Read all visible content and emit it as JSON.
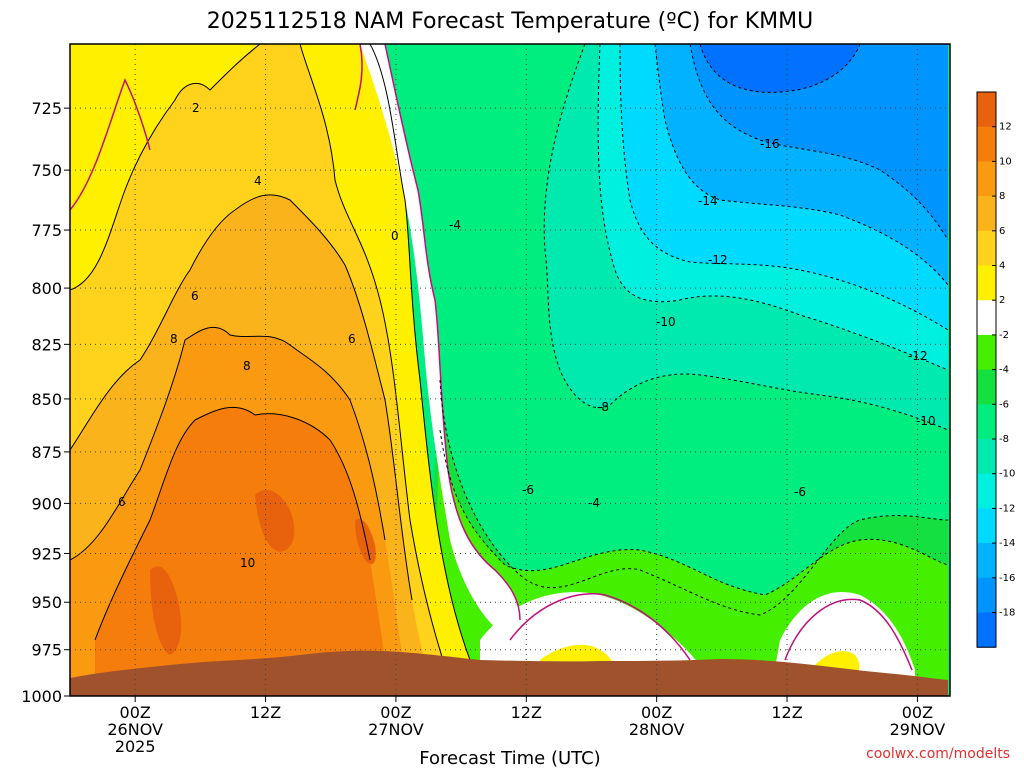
{
  "chart_data": {
    "type": "heatmap",
    "title": "2025112518 NAM Forecast Temperature (ºC) for KMMU",
    "xlabel": "Forecast Time (UTC)",
    "ylabel": "",
    "y_scale": "log-pressure",
    "y_unit": "hPa",
    "ylim": [
      1000,
      700
    ],
    "y_ticks": [
      "725",
      "750",
      "775",
      "800",
      "825",
      "850",
      "875",
      "900",
      "925",
      "950",
      "975",
      "1000"
    ],
    "x_range": [
      "2025-11-25T18Z",
      "2025-11-29T03Z"
    ],
    "x_ticks": [
      {
        "time": "00Z",
        "date": "26NOV",
        "year": "2025"
      },
      {
        "time": "12Z",
        "date": "",
        "year": ""
      },
      {
        "time": "00Z",
        "date": "27NOV",
        "year": ""
      },
      {
        "time": "12Z",
        "date": "",
        "year": ""
      },
      {
        "time": "00Z",
        "date": "28NOV",
        "year": ""
      },
      {
        "time": "12Z",
        "date": "",
        "year": ""
      },
      {
        "time": "00Z",
        "date": "29NOV",
        "year": ""
      }
    ],
    "grid": true,
    "colorbar": {
      "placement": "right",
      "ticks": [
        "12",
        "10",
        "8",
        "6",
        "4",
        "2",
        "-2",
        "-4",
        "-6",
        "-8",
        "-10",
        "-12",
        "-14",
        "-16",
        "-18"
      ],
      "bins": [
        {
          "range": "12 to 14",
          "color": "#e8620e"
        },
        {
          "range": "10 to 12",
          "color": "#f47d0c"
        },
        {
          "range": "8 to 10",
          "color": "#f99a10"
        },
        {
          "range": "6 to 8",
          "color": "#fbb31c"
        },
        {
          "range": "4 to 6",
          "color": "#ffd21c"
        },
        {
          "range": "2 to 4",
          "color": "#fff000"
        },
        {
          "range": "-2 to 2",
          "color": "#ffffff"
        },
        {
          "range": "-4 to -2",
          "color": "#44f000"
        },
        {
          "range": "-6 to -4",
          "color": "#14e040"
        },
        {
          "range": "-8 to -6",
          "color": "#00ee80"
        },
        {
          "range": "-10 to -8",
          "color": "#00eab0"
        },
        {
          "range": "-12 to -10",
          "color": "#00f0e0"
        },
        {
          "range": "-14 to -12",
          "color": "#00daff"
        },
        {
          "range": "-16 to -14",
          "color": "#00b2ff"
        },
        {
          "range": "-18 to -16",
          "color": "#0094ff"
        },
        {
          "range": "-20 to -18",
          "color": "#0072ff"
        }
      ]
    },
    "contour_labels": [
      "2",
      "4",
      "6",
      "8",
      "10",
      "6",
      "8",
      "6",
      "0",
      "-4",
      "-6",
      "-4",
      "-8",
      "-10",
      "-12",
      "-14",
      "-16",
      "-12",
      "-10",
      "-6"
    ],
    "terrain_color": "#a0522d",
    "credit": "coolwx.com/modelts"
  }
}
